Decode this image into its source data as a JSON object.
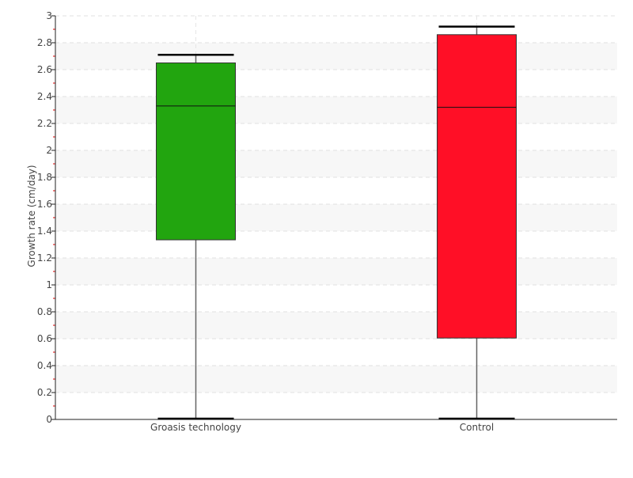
{
  "chart_data": {
    "type": "box",
    "title": "",
    "xlabel": "",
    "ylabel": "Growth rate (cm/day)",
    "ylim": [
      0,
      3
    ],
    "yticks": [
      0,
      0.2,
      0.4,
      0.6,
      0.8,
      1,
      1.2,
      1.4,
      1.6,
      1.8,
      2,
      2.2,
      2.4,
      2.6,
      2.8,
      3
    ],
    "ytick_labels": [
      "0",
      "0.2",
      "0.4",
      "0.6",
      "0.8",
      "1",
      "1.2",
      "1.4",
      "1.6",
      "1.8",
      "2",
      "2.2",
      "2.4",
      "2.6",
      "2.8",
      "3"
    ],
    "grid": true,
    "categories": [
      "Groasis technology",
      "Control"
    ],
    "boxes": [
      {
        "category": "Groasis technology",
        "min": 0,
        "q1": 1.335,
        "median": 2.33,
        "q3": 2.65,
        "max": 2.71,
        "color": "#22a50f"
      },
      {
        "category": "Control",
        "min": 0,
        "q1": 0.605,
        "median": 2.32,
        "q3": 2.86,
        "max": 2.92,
        "color": "#ff0f26"
      }
    ]
  }
}
